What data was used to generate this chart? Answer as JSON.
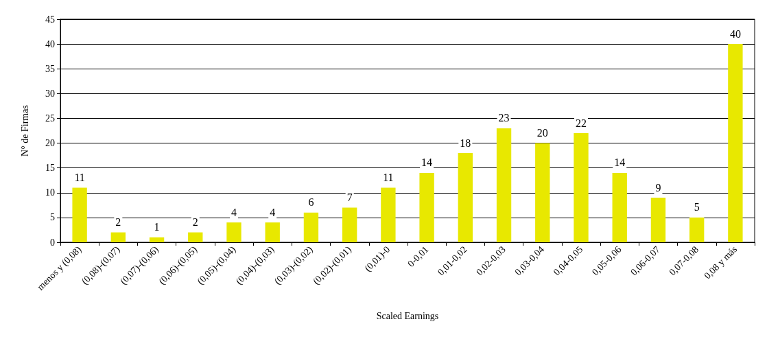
{
  "chart_data": {
    "type": "bar",
    "xlabel": "Scaled Earnings",
    "ylabel": "N° de Firmas",
    "categories": [
      "menos y (0,08)",
      "(0,08)-(0,07)",
      "(0,07)-(0,06)",
      "(0,06)-(0,05)",
      "(0,05)-(0,04)",
      "(0,04)-(0,03)",
      "(0,03)-(0,02)",
      "(0,02)-(0,01)",
      "(0,01)-0",
      "0-0,01",
      "0,01-0,02",
      "0,02-0,03",
      "0,03-0,04",
      "0,04-0,05",
      "0,05-0,06",
      "0,06-0,07",
      "0,07-0,08",
      "0,08 y más"
    ],
    "values": [
      11,
      2,
      1,
      2,
      4,
      4,
      6,
      7,
      11,
      14,
      18,
      23,
      20,
      22,
      14,
      9,
      5,
      40
    ],
    "color": "#e8e800",
    "ylim": [
      0,
      45
    ],
    "yticks": [
      0,
      5,
      10,
      15,
      20,
      25,
      30,
      35,
      40,
      45
    ],
    "grid": "y",
    "data_labels": true
  }
}
